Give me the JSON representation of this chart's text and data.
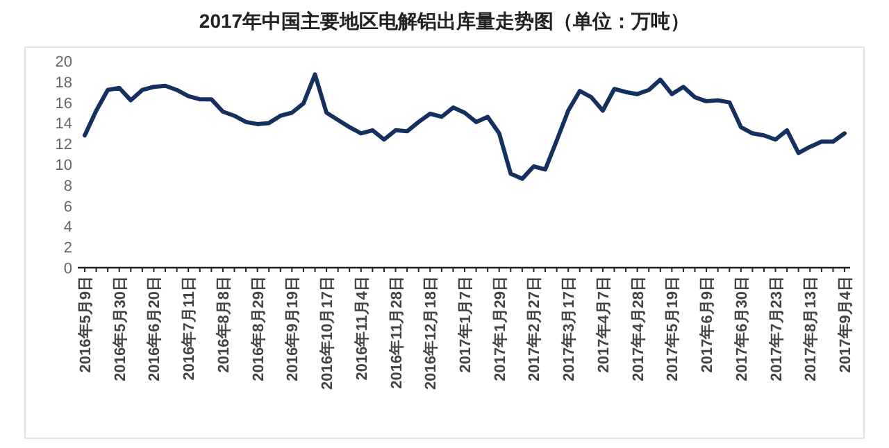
{
  "chart_data": {
    "type": "line",
    "title": "2017年中国主要地区电解铝出库量走势图（单位：万吨）",
    "categories": [
      "2016年5月9日",
      null,
      null,
      "2016年5月30日",
      null,
      null,
      "2016年6月20日",
      null,
      null,
      "2016年7月11日",
      null,
      null,
      "2016年8月8日",
      null,
      null,
      "2016年8月29日",
      null,
      null,
      "2016年9月19日",
      null,
      null,
      "2016年10月17日",
      null,
      null,
      "2016年11月4日",
      null,
      null,
      "2016年11月28日",
      null,
      null,
      "2016年12月18日",
      null,
      null,
      "2017年1月7日",
      null,
      null,
      "2017年1月29日",
      null,
      null,
      "2017年2月27日",
      null,
      null,
      "2017年3月17日",
      null,
      null,
      "2017年4月7日",
      null,
      null,
      "2017年4月28日",
      null,
      null,
      "2017年5月19日",
      null,
      null,
      "2017年6月9日",
      null,
      null,
      "2017年6月30日",
      null,
      null,
      "2017年7月23日",
      null,
      null,
      "2017年8月13日",
      null,
      null,
      "2017年9月4日"
    ],
    "series": [
      {
        "color": "#14305e",
        "values": [
          12.8,
          15.2,
          17.2,
          17.4,
          16.2,
          17.2,
          17.5,
          17.6,
          17.2,
          16.6,
          16.3,
          16.3,
          15.1,
          14.7,
          14.1,
          13.9,
          14.0,
          14.7,
          15.0,
          15.9,
          18.7,
          15.0,
          14.3,
          13.6,
          13.0,
          13.3,
          12.4,
          13.3,
          13.2,
          14.1,
          14.9,
          14.6,
          15.5,
          15.0,
          14.1,
          14.6,
          13.0,
          9.1,
          8.6,
          9.8,
          9.5,
          12.3,
          15.2,
          17.1,
          16.5,
          15.2,
          17.3,
          17.0,
          16.8,
          17.2,
          18.2,
          16.8,
          17.5,
          16.5,
          16.1,
          16.2,
          16.0,
          13.6,
          13.0,
          12.8,
          12.4,
          13.3,
          11.1,
          11.7,
          12.2,
          12.2,
          13.0
        ]
      }
    ],
    "ylim": [
      0,
      20
    ],
    "yticks": [
      0,
      2,
      4,
      6,
      8,
      10,
      12,
      14,
      16,
      18,
      20
    ],
    "line_style": "solid"
  }
}
